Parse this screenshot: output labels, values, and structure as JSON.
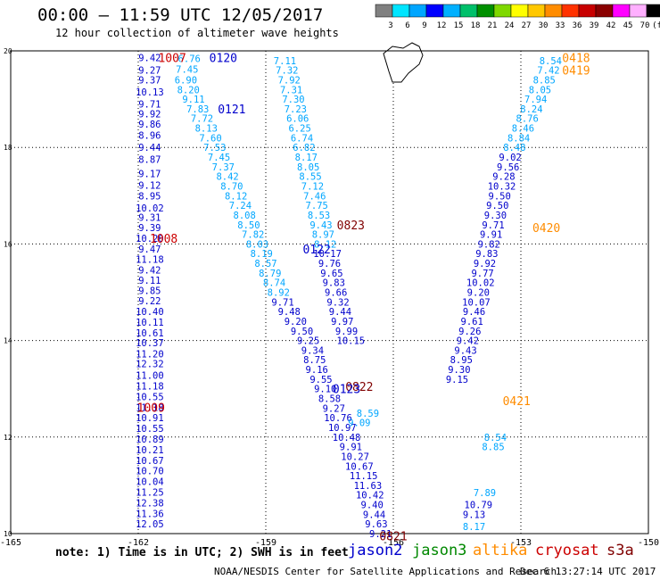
{
  "header": {
    "title": "00:00 – 11:59 UTC 12/05/2017",
    "subtitle": "12 hour collection of altimeter wave heights"
  },
  "colorbar": {
    "ticks": [
      "3",
      "6",
      "9",
      "12",
      "15",
      "18",
      "21",
      "24",
      "27",
      "30",
      "33",
      "36",
      "39",
      "42",
      "45",
      "70",
      "(ft)"
    ],
    "colors": [
      "#808080",
      "#00e5ff",
      "#00a6ff",
      "#0000ff",
      "#00b0ff",
      "#00c06a",
      "#009000",
      "#7fd800",
      "#ffff00",
      "#ffc800",
      "#ff8c00",
      "#ff3200",
      "#c80000",
      "#8a0000",
      "#ff00ff",
      "#ffb0ff",
      "#000000"
    ]
  },
  "footer": {
    "note": "note: 1) Time is in UTC; 2) SWH is in feet",
    "satellites": [
      {
        "name": "jason2",
        "color": "#0000cc"
      },
      {
        "name": "jason3",
        "color": "#008800"
      },
      {
        "name": "altika",
        "color": "#ff8c00"
      },
      {
        "name": "cryosat",
        "color": "#cc0000"
      },
      {
        "name": "s3a",
        "color": "#800000"
      }
    ],
    "credit": "NOAA/NESDIS Center for Satellite Applications and Research",
    "date": "Dec  6 13:27:14 UTC 2017"
  },
  "chart_data": {
    "type": "scatter",
    "title": "00:00 – 11:59 UTC 12/05/2017",
    "xlim": [
      -165,
      -150
    ],
    "ylim": [
      10,
      20
    ],
    "xticks": [
      "-165",
      "-162",
      "-159",
      "-156",
      "-153",
      "-150"
    ],
    "yticks": [
      "10",
      "12",
      "14",
      "16",
      "18",
      "20"
    ],
    "grid": true,
    "units": "ft",
    "tracks": [
      {
        "color": "#0000cc",
        "points": [
          [
            -161.73,
            19.86,
            "9.42"
          ],
          [
            -161.73,
            19.6,
            "9.27"
          ],
          [
            -161.73,
            19.4,
            "9.37"
          ],
          [
            -161.73,
            19.15,
            "10.13"
          ],
          [
            -161.73,
            18.9,
            "9.71"
          ],
          [
            -161.73,
            18.7,
            "9.92"
          ],
          [
            -161.73,
            18.48,
            "9.86"
          ],
          [
            -161.73,
            18.25,
            "8.96"
          ],
          [
            -161.73,
            18.0,
            "9.44"
          ],
          [
            -161.73,
            17.75,
            "8.87"
          ],
          [
            -161.73,
            17.46,
            "9.17"
          ],
          [
            -161.73,
            17.22,
            "9.12"
          ],
          [
            -161.73,
            17.0,
            "8.95"
          ],
          [
            -161.73,
            16.75,
            "10.02"
          ],
          [
            -161.73,
            16.55,
            "9.31"
          ],
          [
            -161.73,
            16.34,
            "9.39"
          ],
          [
            -161.73,
            16.12,
            "10.20"
          ],
          [
            -161.73,
            15.9,
            "9.47"
          ],
          [
            -161.73,
            15.68,
            "11.18"
          ],
          [
            -161.73,
            15.46,
            "9.42"
          ],
          [
            -161.73,
            15.25,
            "9.11"
          ],
          [
            -161.73,
            15.04,
            "9.85"
          ],
          [
            -161.73,
            14.82,
            "9.22"
          ],
          [
            -161.73,
            14.6,
            "10.40"
          ],
          [
            -161.73,
            14.38,
            "10.11"
          ],
          [
            -161.73,
            14.16,
            "10.61"
          ],
          [
            -161.73,
            13.96,
            "10.37"
          ],
          [
            -161.73,
            13.72,
            "11.20"
          ],
          [
            -161.73,
            13.52,
            "12.32"
          ],
          [
            -161.73,
            13.28,
            "11.00"
          ],
          [
            -161.73,
            13.06,
            "11.18"
          ],
          [
            -161.73,
            12.84,
            "10.55"
          ],
          [
            -161.73,
            12.62,
            "11.18"
          ],
          [
            -161.73,
            12.4,
            "10.91"
          ],
          [
            -161.73,
            12.18,
            "10.55"
          ],
          [
            -161.73,
            11.96,
            "10.89"
          ],
          [
            -161.73,
            11.74,
            "10.21"
          ],
          [
            -161.73,
            11.52,
            "10.67"
          ],
          [
            -161.73,
            11.3,
            "10.70"
          ],
          [
            -161.73,
            11.08,
            "10.04"
          ],
          [
            -161.73,
            10.86,
            "11.25"
          ],
          [
            -161.73,
            10.64,
            "12.38"
          ],
          [
            -161.73,
            10.42,
            "11.36"
          ],
          [
            -161.73,
            10.2,
            "12.05"
          ]
        ]
      },
      {
        "color": "#00a6ff",
        "points": [
          [
            -160.8,
            19.84,
            "6.76"
          ],
          [
            -160.85,
            19.62,
            "7.45"
          ],
          [
            -160.88,
            19.4,
            "6.90"
          ],
          [
            -160.82,
            19.2,
            "8.20"
          ],
          [
            -160.7,
            19.0,
            "9.11"
          ],
          [
            -160.6,
            18.8,
            "7.83"
          ],
          [
            -160.5,
            18.6,
            "7.72"
          ],
          [
            -160.4,
            18.4,
            "8.13"
          ],
          [
            -160.3,
            18.2,
            "7.60"
          ],
          [
            -160.2,
            18.0,
            "7.53"
          ],
          [
            -160.1,
            17.8,
            "7.45"
          ],
          [
            -160.0,
            17.6,
            "7.37"
          ],
          [
            -159.9,
            17.4,
            "8.42"
          ],
          [
            -159.8,
            17.2,
            "8.70"
          ],
          [
            -159.7,
            17.0,
            "8.12"
          ],
          [
            -159.6,
            16.8,
            "7.24"
          ],
          [
            -159.5,
            16.6,
            "8.08"
          ],
          [
            -159.4,
            16.4,
            "8.50"
          ],
          [
            -159.3,
            16.2,
            "7.82"
          ],
          [
            -159.2,
            16.0,
            "8.03"
          ],
          [
            -159.1,
            15.8,
            "8.19"
          ],
          [
            -159.0,
            15.6,
            "8.57"
          ],
          [
            -158.9,
            15.4,
            "8.79"
          ],
          [
            -158.8,
            15.2,
            "8.74"
          ],
          [
            -158.7,
            15.0,
            "8.92"
          ]
        ]
      },
      {
        "color": "#0000cc",
        "points": [
          [
            -158.6,
            14.8,
            "9.71"
          ],
          [
            -158.45,
            14.6,
            "9.48"
          ],
          [
            -158.3,
            14.4,
            "9.20"
          ],
          [
            -158.15,
            14.2,
            "9.50"
          ],
          [
            -158.0,
            14.0,
            "9.25"
          ],
          [
            -157.9,
            13.8,
            "9.34"
          ],
          [
            -157.85,
            13.6,
            "8.75"
          ],
          [
            -157.8,
            13.4,
            "9.16"
          ],
          [
            -157.7,
            13.2,
            "9.55"
          ],
          [
            -157.6,
            13.0,
            "9.10"
          ],
          [
            -157.5,
            12.8,
            "8.58"
          ],
          [
            -157.4,
            12.6,
            "9.27"
          ],
          [
            -157.3,
            12.4,
            "10.76"
          ],
          [
            -157.2,
            12.2,
            "10.97"
          ],
          [
            -157.1,
            12.0,
            "10.48"
          ],
          [
            -157.0,
            11.8,
            "9.91"
          ],
          [
            -156.9,
            11.6,
            "10.27"
          ],
          [
            -156.8,
            11.4,
            "10.67"
          ],
          [
            -156.7,
            11.2,
            "11.15"
          ],
          [
            -156.6,
            11.0,
            "11.63"
          ],
          [
            -156.55,
            10.8,
            "10.42"
          ],
          [
            -156.5,
            10.6,
            "9.40"
          ],
          [
            -156.45,
            10.4,
            "9.44"
          ],
          [
            -156.4,
            10.2,
            "9.63"
          ],
          [
            -156.3,
            10.0,
            "9.21"
          ]
        ]
      },
      {
        "color": "#00a6ff",
        "points": [
          [
            -158.55,
            19.8,
            "7.11"
          ],
          [
            -158.5,
            19.6,
            "7.32"
          ],
          [
            -158.45,
            19.4,
            "7.92"
          ],
          [
            -158.4,
            19.2,
            "7.31"
          ],
          [
            -158.35,
            19.0,
            "7.30"
          ],
          [
            -158.3,
            18.8,
            "7.23"
          ],
          [
            -158.25,
            18.6,
            "6.06"
          ],
          [
            -158.2,
            18.4,
            "6.25"
          ],
          [
            -158.15,
            18.2,
            "6.74"
          ],
          [
            -158.1,
            18.0,
            "6.82"
          ],
          [
            -158.05,
            17.8,
            "8.17"
          ],
          [
            -158.0,
            17.6,
            "8.05"
          ],
          [
            -157.95,
            17.4,
            "8.55"
          ],
          [
            -157.9,
            17.2,
            "7.12"
          ],
          [
            -157.85,
            17.0,
            "7.46"
          ],
          [
            -157.8,
            16.8,
            "7.75"
          ],
          [
            -157.75,
            16.6,
            "8.53"
          ],
          [
            -157.7,
            16.4,
            "9.43"
          ],
          [
            -157.65,
            16.2,
            "8.97"
          ],
          [
            -157.6,
            16.0,
            "8.12"
          ]
        ]
      },
      {
        "color": "#0000cc",
        "points": [
          [
            -157.55,
            15.8,
            "10.17"
          ],
          [
            -157.5,
            15.6,
            "9.76"
          ],
          [
            -157.45,
            15.4,
            "9.65"
          ],
          [
            -157.4,
            15.2,
            "9.83"
          ],
          [
            -157.35,
            15.0,
            "9.66"
          ],
          [
            -157.3,
            14.8,
            "9.32"
          ],
          [
            -157.25,
            14.6,
            "9.44"
          ],
          [
            -157.2,
            14.4,
            "9.97"
          ],
          [
            -157.1,
            14.2,
            "9.99"
          ],
          [
            -157.0,
            14.0,
            "10.15"
          ]
        ]
      },
      {
        "color": "#00a6ff",
        "points": [
          [
            -152.3,
            19.8,
            "8.54"
          ],
          [
            -152.35,
            19.6,
            "7.42"
          ],
          [
            -152.45,
            19.4,
            "8.85"
          ],
          [
            -152.55,
            19.2,
            "8.05"
          ],
          [
            -152.65,
            19.0,
            "7.94"
          ],
          [
            -152.75,
            18.8,
            "8.24"
          ],
          [
            -152.85,
            18.6,
            "8.76"
          ],
          [
            -152.95,
            18.4,
            "8.46"
          ],
          [
            -153.05,
            18.2,
            "8.84"
          ],
          [
            -153.15,
            18.0,
            "8.48"
          ],
          [
            -156.6,
            12.5,
            "8.59"
          ],
          [
            -156.8,
            12.3,
            "9.09"
          ],
          [
            -153.6,
            12.0,
            "8.54"
          ],
          [
            -153.65,
            11.8,
            "8.85"
          ],
          [
            -153.85,
            10.85,
            "7.89"
          ],
          [
            -154.1,
            10.15,
            "8.17"
          ]
        ]
      },
      {
        "color": "#0000cc",
        "points": [
          [
            -153.25,
            17.8,
            "9.02"
          ],
          [
            -153.3,
            17.6,
            "9.56"
          ],
          [
            -153.4,
            17.4,
            "9.28"
          ],
          [
            -153.45,
            17.2,
            "10.32"
          ],
          [
            -153.5,
            17.0,
            "9.50"
          ],
          [
            -153.55,
            16.8,
            "9.50"
          ],
          [
            -153.6,
            16.6,
            "9.30"
          ],
          [
            -153.65,
            16.4,
            "9.71"
          ],
          [
            -153.7,
            16.2,
            "9.91"
          ],
          [
            -153.75,
            16.0,
            "9.82"
          ],
          [
            -153.8,
            15.8,
            "9.83"
          ],
          [
            -153.85,
            15.6,
            "9.92"
          ],
          [
            -153.9,
            15.4,
            "9.77"
          ],
          [
            -153.95,
            15.2,
            "10.02"
          ],
          [
            -154.0,
            15.0,
            "9.20"
          ],
          [
            -154.05,
            14.8,
            "10.07"
          ],
          [
            -154.1,
            14.6,
            "9.46"
          ],
          [
            -154.15,
            14.4,
            "9.61"
          ],
          [
            -154.2,
            14.2,
            "9.26"
          ],
          [
            -154.25,
            14.0,
            "9.42"
          ],
          [
            -154.3,
            13.8,
            "9.43"
          ],
          [
            -154.4,
            13.6,
            "8.95"
          ],
          [
            -154.45,
            13.4,
            "9.30"
          ],
          [
            -154.5,
            13.2,
            "9.15"
          ],
          [
            -154.0,
            10.6,
            "10.79"
          ],
          [
            -154.1,
            10.4,
            "9.13"
          ]
        ]
      }
    ],
    "time_labels": [
      {
        "x": -161.2,
        "y": 19.86,
        "text": "1007",
        "color": "#cc0000"
      },
      {
        "x": -160.0,
        "y": 19.86,
        "text": "0120",
        "color": "#0000cc"
      },
      {
        "x": -159.8,
        "y": 18.8,
        "text": "0121",
        "color": "#0000cc"
      },
      {
        "x": -161.4,
        "y": 16.12,
        "text": "1008",
        "color": "#cc0000"
      },
      {
        "x": -157.0,
        "y": 16.4,
        "text": "0823",
        "color": "#800000"
      },
      {
        "x": -157.8,
        "y": 15.9,
        "text": "0122",
        "color": "#0000cc"
      },
      {
        "x": -156.8,
        "y": 13.05,
        "text": "0822",
        "color": "#800000"
      },
      {
        "x": -157.1,
        "y": 13.0,
        "text": "0123",
        "color": "#0000cc"
      },
      {
        "x": -161.7,
        "y": 12.62,
        "text": "1009",
        "color": "#cc0000"
      },
      {
        "x": -156.0,
        "y": 9.95,
        "text": "0821",
        "color": "#800000"
      },
      {
        "x": -151.7,
        "y": 19.86,
        "text": "0418",
        "color": "#ff8c00"
      },
      {
        "x": -151.7,
        "y": 19.6,
        "text": "0419",
        "color": "#ff8c00"
      },
      {
        "x": -152.4,
        "y": 16.34,
        "text": "0420",
        "color": "#ff8c00"
      },
      {
        "x": -153.1,
        "y": 12.75,
        "text": "0421",
        "color": "#ff8c00"
      }
    ]
  }
}
